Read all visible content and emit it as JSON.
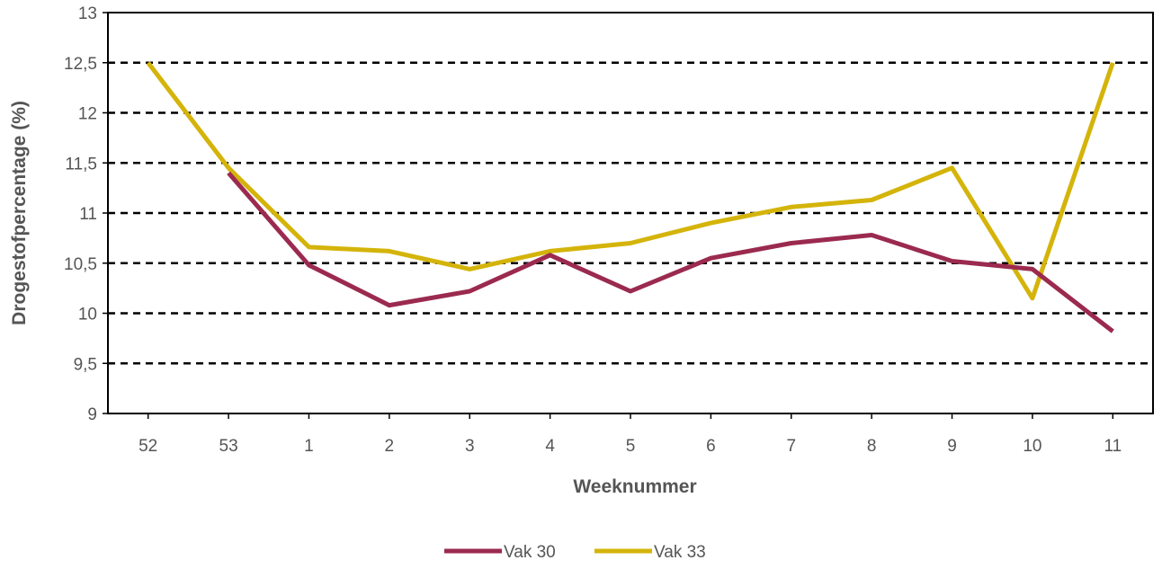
{
  "chart_data": {
    "type": "line",
    "title": "",
    "xlabel": "Weeknummer",
    "ylabel": "Drogestofpercentage (%)",
    "categories": [
      "52",
      "53",
      "1",
      "2",
      "3",
      "4",
      "5",
      "6",
      "7",
      "8",
      "9",
      "10",
      "11"
    ],
    "ylim": [
      9,
      13
    ],
    "y_ticks": [
      "9",
      "9,5",
      "10",
      "10,5",
      "11",
      "11,5",
      "12",
      "12,5",
      "13"
    ],
    "y_tick_values": [
      9,
      9.5,
      10,
      10.5,
      11,
      11.5,
      12,
      12.5,
      13
    ],
    "grid": "horizontal dashed",
    "legend_position": "bottom",
    "series": [
      {
        "name": "Vak 30",
        "color": "#9b2a4f",
        "values": [
          null,
          11.4,
          10.48,
          10.08,
          10.22,
          10.58,
          10.22,
          10.55,
          10.7,
          10.78,
          10.52,
          10.44,
          9.82
        ]
      },
      {
        "name": "Vak 33",
        "color": "#d4b40a",
        "values": [
          12.5,
          11.45,
          10.66,
          10.62,
          10.44,
          10.62,
          10.7,
          10.9,
          11.06,
          11.13,
          11.45,
          10.15,
          12.5
        ]
      }
    ]
  }
}
